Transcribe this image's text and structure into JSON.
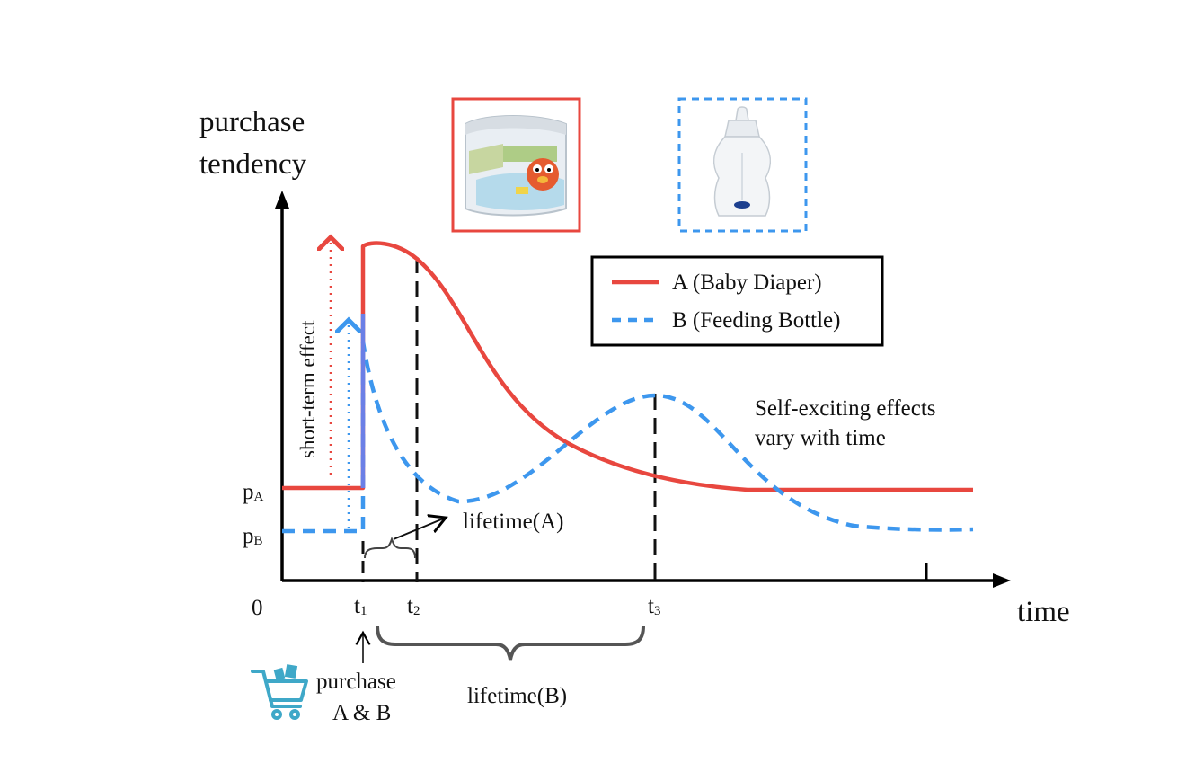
{
  "y_axis_title": [
    "purchase",
    "tendency"
  ],
  "x_axis_title": "time",
  "origin_label": "0",
  "levels": {
    "pA": {
      "base": "p",
      "sub": "A"
    },
    "pB": {
      "base": "p",
      "sub": "B"
    }
  },
  "ticks": [
    {
      "base": "t",
      "sub": "1"
    },
    {
      "base": "t",
      "sub": "2"
    },
    {
      "base": "t",
      "sub": "3"
    }
  ],
  "short_term_label": "short-term effect",
  "legend": [
    {
      "label": "A (Baby Diaper)",
      "color": "#e8473f",
      "style": "solid"
    },
    {
      "label": "B (Feeding Bottle)",
      "color": "#3d97ee",
      "style": "dashed"
    }
  ],
  "annotation": [
    "Self-exciting effects",
    "vary with time"
  ],
  "lifetime_a": "lifetime(A)",
  "lifetime_b": "lifetime(B)",
  "purchase_label": [
    "purchase",
    "A & B"
  ],
  "icons": {
    "product_a": "baby-diaper-icon",
    "product_b": "feeding-bottle-icon",
    "cart": "shopping-cart-icon"
  },
  "colors": {
    "A": "#e8473f",
    "B": "#3d97ee",
    "jump": "#6b7fe6",
    "cart": "#3fa8c8"
  }
}
